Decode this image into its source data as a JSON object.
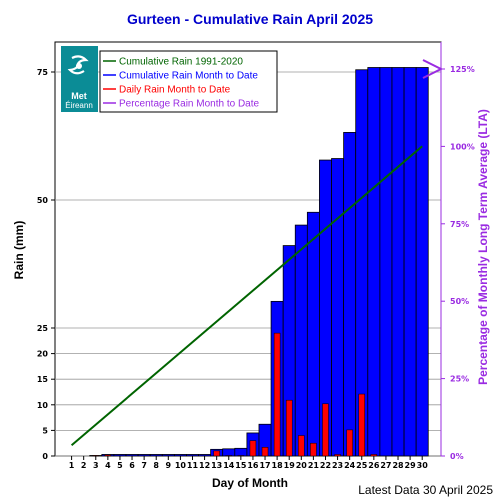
{
  "chart_data": {
    "type": "bar",
    "title": "Gurteen - Cumulative Rain April   2025",
    "xlabel": "Day of Month",
    "ylabel": "Rain (mm)",
    "y2label": "Percentage  of Monthly Long Term Average (LTA)",
    "footer": "Latest Data 30 April 2025",
    "logo": {
      "line1": "Met",
      "line2": "Éireann"
    },
    "days": [
      "1",
      "2",
      "3",
      "4",
      "5",
      "6",
      "7",
      "8",
      "9",
      "10",
      "11",
      "12",
      "13",
      "14",
      "15",
      "16",
      "17",
      "18",
      "19",
      "20",
      "21",
      "22",
      "23",
      "24",
      "25",
      "26",
      "27",
      "28",
      "29",
      "30"
    ],
    "y_ticks": [
      "0",
      "5",
      "10",
      "15",
      "20",
      "25",
      "50",
      "75"
    ],
    "y2_ticks": [
      "0%",
      "25%",
      "50%",
      "75%",
      "100%",
      "125%"
    ],
    "legend": [
      {
        "label": "Cumulative Rain 1991-2020",
        "color": "#006400"
      },
      {
        "label": "Cumulative Rain Month to Date",
        "color": "#0000ff"
      },
      {
        "label": "Daily Rain Month to Date",
        "color": "#ff0000"
      },
      {
        "label": "Percentage Rain Month to Date",
        "color": "#9a2be2"
      }
    ],
    "series": [
      {
        "name": "Cumulative Rain Month to Date",
        "values": [
          0,
          0,
          0.1,
          0.3,
          0.3,
          0.3,
          0.3,
          0.3,
          0.3,
          0.3,
          0.3,
          0.3,
          1.3,
          1.4,
          1.5,
          4.5,
          6.2,
          30.2,
          41.1,
          45.1,
          47.6,
          57.8,
          58.1,
          63.2,
          75.3,
          75.6,
          75.6,
          75.6,
          75.6,
          75.6
        ]
      },
      {
        "name": "Daily Rain Month to Date",
        "values": [
          0,
          0,
          0.1,
          0.2,
          0,
          0,
          0,
          0,
          0,
          0,
          0,
          0,
          1.0,
          0.1,
          0.1,
          3.0,
          1.7,
          24.0,
          10.9,
          4.0,
          2.5,
          10.2,
          0.3,
          5.1,
          12.1,
          0.3,
          0,
          0,
          0,
          0
        ]
      },
      {
        "name": "Cumulative Rain 1991-2020",
        "x": [
          1,
          30
        ],
        "values": [
          2.1,
          60.5
        ]
      },
      {
        "name": "Percentage Rain Month to Date",
        "values": [
          125.0
        ]
      }
    ],
    "y_scale": {
      "breaks": [
        0,
        25,
        50,
        75,
        79
      ]
    },
    "y2_scale": {
      "ticks": [
        0,
        25,
        50,
        75,
        100,
        125
      ]
    },
    "colors": {
      "title": "#0000cc",
      "cumulative_bar": "#0000ff",
      "daily_bar": "#ff0000",
      "lta_line": "#006400",
      "percent": "#9a2be2",
      "logo_bg": "#0b8c96"
    },
    "grid": true,
    "legend_position": "top-left"
  }
}
